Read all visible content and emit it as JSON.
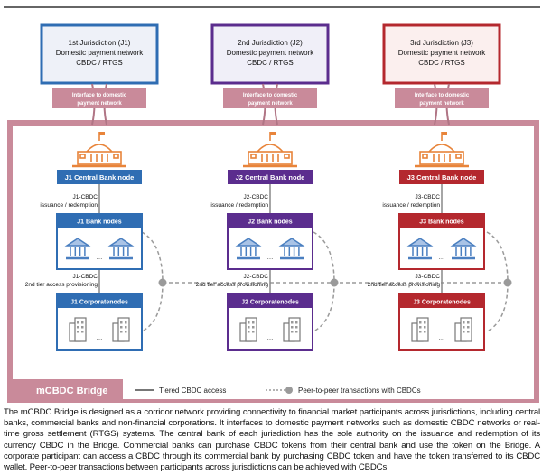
{
  "colors": {
    "j1": "#2f6db3",
    "j2": "#5b2d8e",
    "j3": "#b4282e",
    "bridge": "#c98a9a",
    "orange": "#e8843a",
    "bank_icon": "#4a7fc0",
    "dash": "#9a9a9a"
  },
  "jurisdictions": [
    {
      "title": "1st Jurisdiction (J1)",
      "network": "Domestic payment network",
      "system": "CBDC / RTGS",
      "interface": [
        "Interface to domestic",
        "payment network"
      ],
      "central_node": "J1 Central Bank node",
      "issuance_cbdc": "J1-CBDC",
      "issuance_text": "issuance / redemption",
      "bank_nodes": "J1 Bank nodes",
      "tier_cbdc": "J1-CBDC",
      "tier_text": "2nd tier access provisioning",
      "corporate_nodes": "J1 Corporatenodes",
      "ellipsis": "..."
    },
    {
      "title": "2nd Jurisdiction (J2)",
      "network": "Domestic payment network",
      "system": "CBDC / RTGS",
      "interface": [
        "Interface to domestic",
        "payment network"
      ],
      "central_node": "J2 Central Bank node",
      "issuance_cbdc": "J2-CBDC",
      "issuance_text": "issuance / redemption",
      "bank_nodes": "J2 Bank nodes",
      "tier_cbdc": "J2-CBDC",
      "tier_text": "2nd tier access provisioning",
      "corporate_nodes": "J2 Corporatenodes",
      "ellipsis": "..."
    },
    {
      "title": "3rd Jurisdiction (J3)",
      "network": "Domestic payment network",
      "system": "CBDC / RTGS",
      "interface": [
        "Interface to domestic",
        "payment network"
      ],
      "central_node": "J3 Central Bank node",
      "issuance_cbdc": "J3-CBDC",
      "issuance_text": "issuance / redemption",
      "bank_nodes": "J3 Bank nodes",
      "tier_cbdc": "J3-CBDC",
      "tier_text": "2nd tier access provisioning",
      "corporate_nodes": "J3 Corporatenodes",
      "ellipsis": "..."
    }
  ],
  "bridge_label": "mCBDC Bridge",
  "legend": {
    "tiered": "Tiered CBDC access",
    "p2p": "Peer-to-peer transactions with CBDCs"
  },
  "caption": "The mCBDC Bridge is designed as a corridor network providing connectivity to financial market participants across jurisdictions, including central banks, commercial banks and non-financial corporations. It interfaces to domestic payment networks such as domestic CBDC networks or real-time gross settlement (RTGS) systems. The central bank of each jurisdiction has the sole authority on the issuance and redemption of its currency CBDC in the Bridge. Commercial banks can purchase CBDC tokens from their central bank and use the token on the Bridge. A corporate participant can access a CBDC through its commercial bank by purchasing CBDC token and have the token transferred to its CBDC wallet. Peer-to-peer transactions between participants across jurisdictions can be achieved with CBDCs."
}
